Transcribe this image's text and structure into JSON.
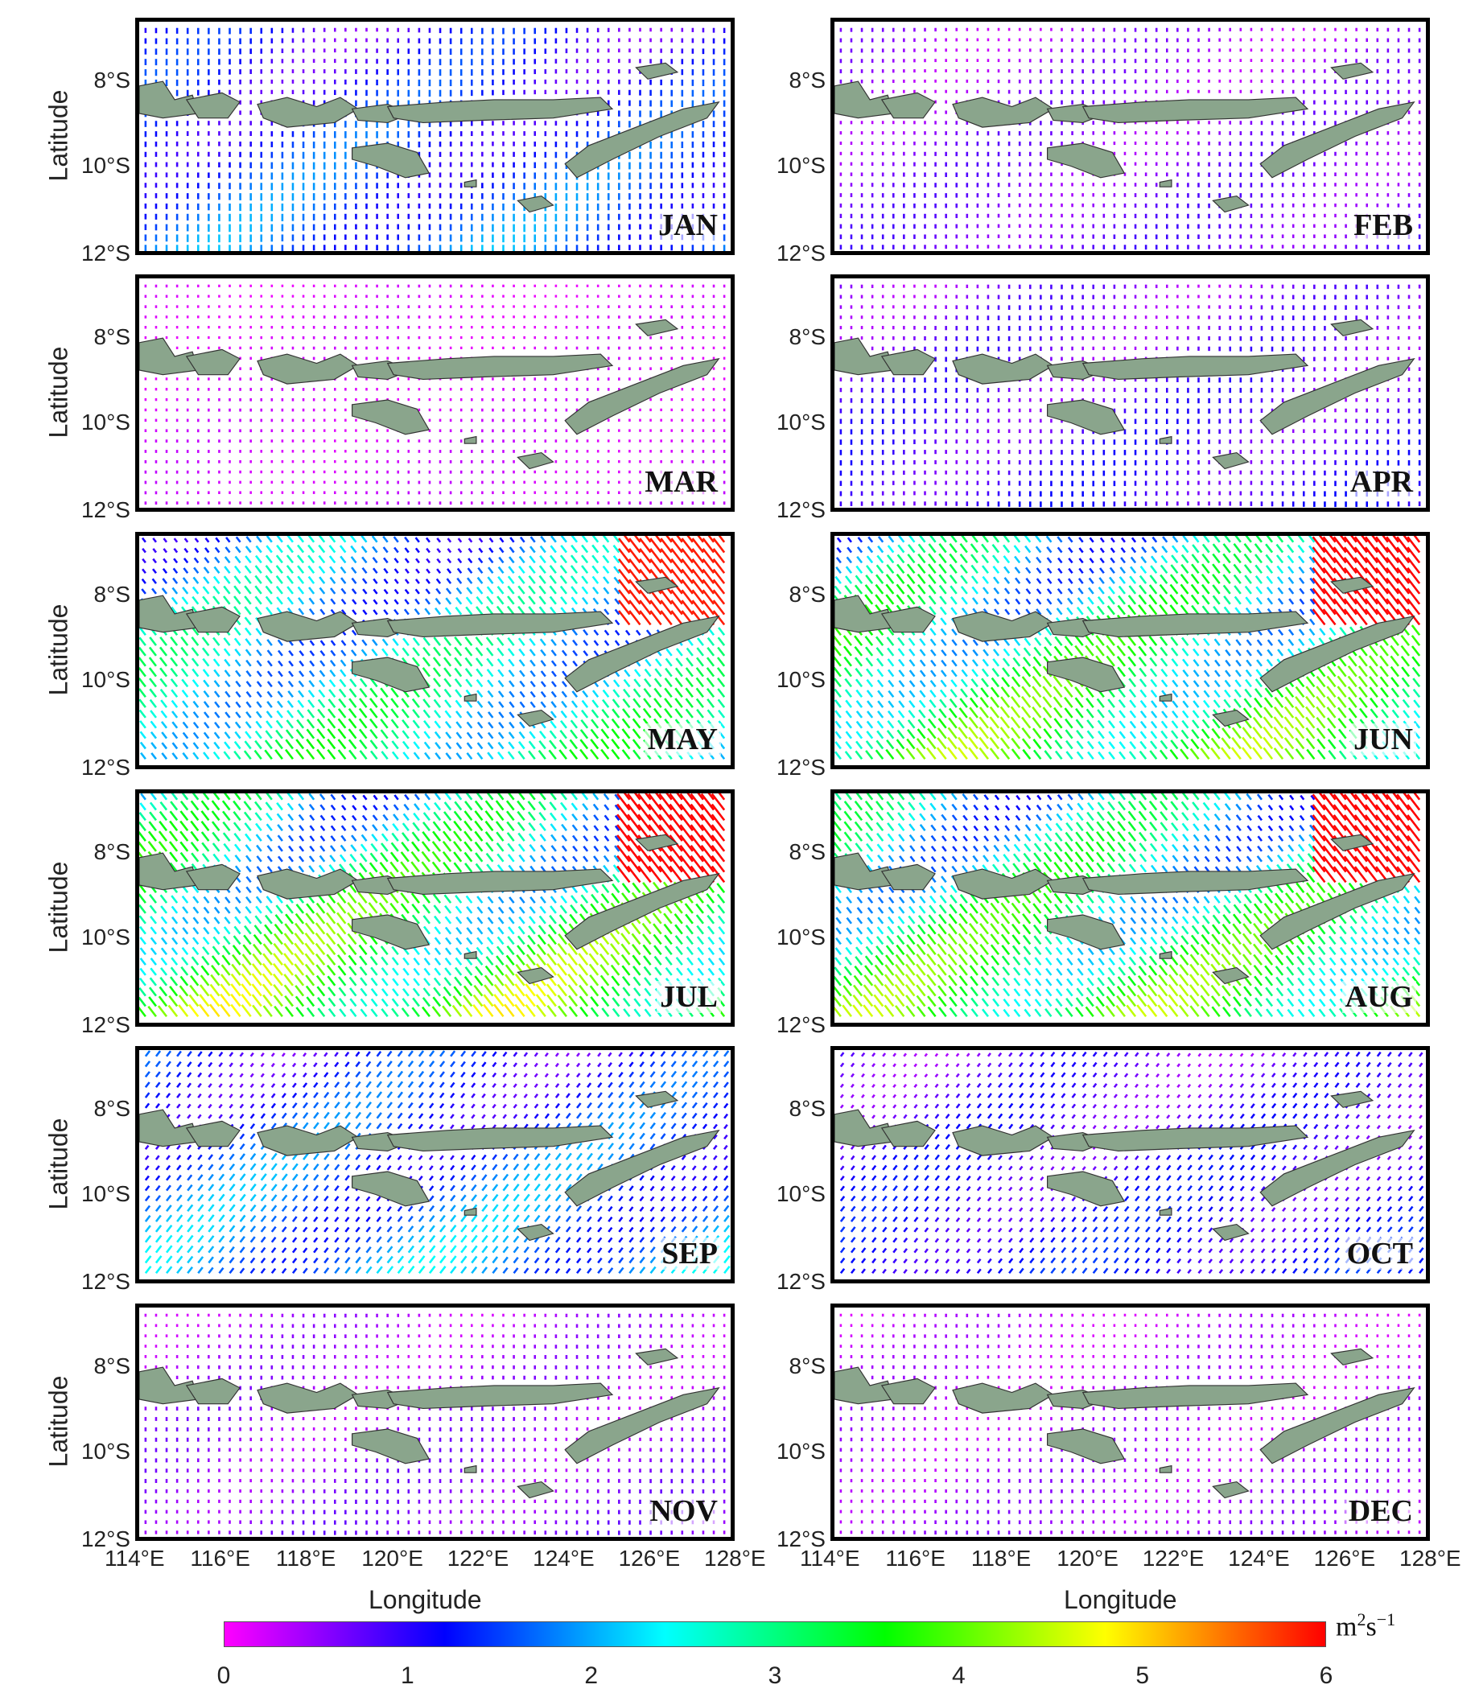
{
  "panels": [
    {
      "month": "JAN",
      "speed_level": 1.4,
      "direction": "southward"
    },
    {
      "month": "FEB",
      "speed_level": 0.6,
      "direction": "southward"
    },
    {
      "month": "MAR",
      "speed_level": 0.2,
      "direction": "weak"
    },
    {
      "month": "APR",
      "speed_level": 0.8,
      "direction": "southward"
    },
    {
      "month": "MAY",
      "speed_level": 2.4,
      "direction": "northwestward"
    },
    {
      "month": "JUN",
      "speed_level": 3.0,
      "direction": "northwestward"
    },
    {
      "month": "JUL",
      "speed_level": 3.2,
      "direction": "northwestward"
    },
    {
      "month": "AUG",
      "speed_level": 3.0,
      "direction": "northwestward"
    },
    {
      "month": "SEP",
      "speed_level": 1.6,
      "direction": "northeastward"
    },
    {
      "month": "OCT",
      "speed_level": 1.0,
      "direction": "northeastward"
    },
    {
      "month": "NOV",
      "speed_level": 0.5,
      "direction": "weak"
    },
    {
      "month": "DEC",
      "speed_level": 0.4,
      "direction": "weak"
    }
  ],
  "axes": {
    "ylabel": "Latitude",
    "xlabel": "Longitude",
    "lat_ticks": [
      "8°S",
      "10°S",
      "12°S"
    ],
    "lon_ticks": [
      "114°E",
      "116°E",
      "118°E",
      "120°E",
      "122°E",
      "124°E",
      "126°E",
      "128°E"
    ]
  },
  "colorbar": {
    "ticks": [
      "0",
      "1",
      "2",
      "3",
      "4",
      "5",
      "6"
    ],
    "range": [
      0,
      6
    ],
    "unit_base": "m",
    "unit_exp1": "2",
    "unit_mid": "s",
    "unit_exp2": "−1",
    "colors": [
      "#ff00ff",
      "#0000ff",
      "#00ffff",
      "#00ff00",
      "#ffff00",
      "#ff0000"
    ]
  },
  "land_color": "#8aa58c"
}
